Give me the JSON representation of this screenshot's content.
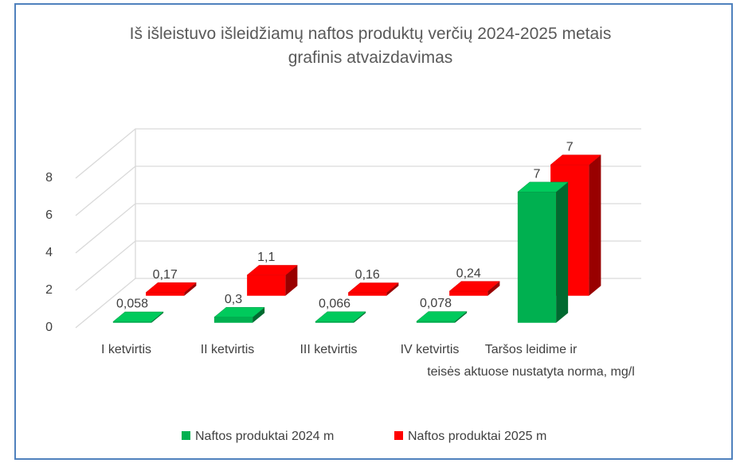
{
  "chart_data": {
    "type": "bar3d",
    "title": "Iš išleistuvo išleidžiamų naftos produktų verčių 2024-2025 metais\ngrafinis atvaizdavimas",
    "categories": [
      "I ketvirtis",
      "II ketvirtis",
      "III ketvirtis",
      "IV ketvirtis",
      "Taršos leidime ir\nteisės aktuose nustatyta norma, mg/l"
    ],
    "series": [
      {
        "name": "Naftos produktai 2024 m",
        "color": "#00b050",
        "values": [
          0.058,
          0.3,
          0.066,
          0.078,
          7
        ],
        "value_labels": [
          "0,058",
          "0,3",
          "0,066",
          "0,078",
          "7"
        ]
      },
      {
        "name": "Naftos produktai 2025 m",
        "color": "#ff0000",
        "values": [
          0.17,
          1.1,
          0.16,
          0.24,
          7
        ],
        "value_labels": [
          "0,17",
          "1,1",
          "0,16",
          "0,24",
          "7"
        ]
      }
    ],
    "ylim": [
      0,
      8
    ],
    "yticks": [
      0,
      2,
      4,
      6,
      8
    ],
    "grid": true,
    "legend": "bottom"
  }
}
